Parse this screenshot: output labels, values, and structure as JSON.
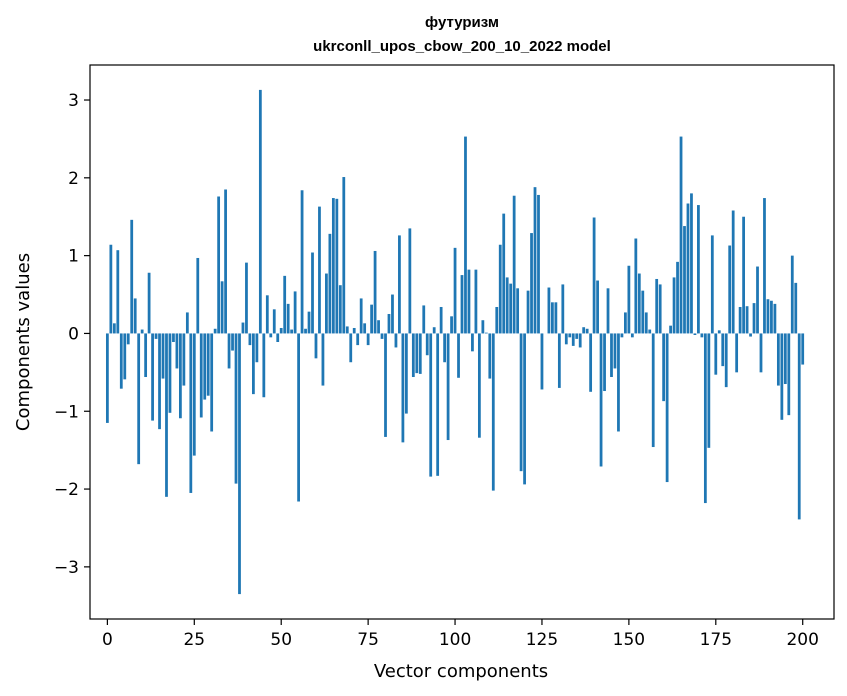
{
  "chart_data": {
    "type": "bar",
    "title_line1": "футуризм",
    "title_line2": "ukrconll_upos_cbow_200_10_2022 model",
    "xlabel": "Vector components",
    "ylabel": "Components values",
    "xlim": [
      -5,
      209
    ],
    "ylim": [
      -3.67,
      3.45
    ],
    "grid": false,
    "bar_color": "#1f77b4",
    "x_ticks": [
      {
        "value": 0,
        "label": "0"
      },
      {
        "value": 25,
        "label": "25"
      },
      {
        "value": 50,
        "label": "50"
      },
      {
        "value": 75,
        "label": "75"
      },
      {
        "value": 100,
        "label": "100"
      },
      {
        "value": 125,
        "label": "125"
      },
      {
        "value": 150,
        "label": "150"
      },
      {
        "value": 175,
        "label": "175"
      },
      {
        "value": 200,
        "label": "200"
      }
    ],
    "y_ticks": [
      {
        "value": 3,
        "label": "3"
      },
      {
        "value": 2,
        "label": "2"
      },
      {
        "value": 1,
        "label": "1"
      },
      {
        "value": 0,
        "label": "0"
      },
      {
        "value": -1,
        "label": "−1"
      },
      {
        "value": -2,
        "label": "−2"
      },
      {
        "value": -3,
        "label": "−3"
      }
    ],
    "values": [
      -1.15,
      1.14,
      0.13,
      1.07,
      -0.71,
      -0.59,
      -0.14,
      1.46,
      0.45,
      -1.68,
      0.05,
      -0.56,
      0.78,
      -1.12,
      -0.07,
      -1.23,
      -0.58,
      -2.1,
      -1.02,
      -0.11,
      -0.45,
      -1.09,
      -0.67,
      0.27,
      -2.05,
      -1.57,
      0.97,
      -1.08,
      -0.85,
      -0.8,
      -1.26,
      0.06,
      1.76,
      0.67,
      1.85,
      -0.45,
      -0.22,
      -1.93,
      -3.35,
      0.14,
      0.91,
      -0.15,
      -0.78,
      -0.37,
      3.13,
      -0.82,
      0.49,
      -0.05,
      0.31,
      -0.11,
      0.07,
      0.74,
      0.38,
      0.05,
      0.54,
      -2.16,
      1.84,
      0.06,
      0.28,
      1.04,
      -0.32,
      1.63,
      -0.67,
      0.77,
      1.28,
      1.74,
      1.73,
      0.62,
      2.01,
      0.09,
      -0.37,
      0.07,
      -0.15,
      0.45,
      0.13,
      -0.15,
      0.37,
      1.06,
      0.17,
      -0.07,
      -1.33,
      0.25,
      0.5,
      -0.18,
      1.26,
      -1.4,
      -1.03,
      1.35,
      -0.56,
      -0.51,
      -0.52,
      0.36,
      -0.28,
      -1.84,
      0.08,
      -1.83,
      0.34,
      -0.37,
      -1.37,
      0.22,
      1.1,
      -0.57,
      0.75,
      2.53,
      0.82,
      -0.23,
      0.82,
      -1.34,
      0.17,
      0.01,
      -0.58,
      -2.02,
      0.34,
      1.14,
      1.54,
      0.72,
      0.64,
      1.77,
      0.58,
      -1.77,
      -1.94,
      0.55,
      1.29,
      1.88,
      1.78,
      -0.72,
      0.0,
      0.59,
      0.4,
      0.4,
      -0.7,
      0.63,
      -0.14,
      -0.05,
      -0.16,
      -0.07,
      -0.18,
      0.08,
      0.06,
      -0.75,
      1.49,
      0.68,
      -1.71,
      -0.74,
      0.58,
      -0.56,
      -0.45,
      -1.26,
      -0.05,
      0.27,
      0.87,
      -0.05,
      1.22,
      0.77,
      0.55,
      0.27,
      0.05,
      -1.46,
      0.7,
      0.63,
      -0.87,
      -1.91,
      0.1,
      0.72,
      0.92,
      2.53,
      1.38,
      1.67,
      1.8,
      -0.02,
      1.65,
      -0.05,
      -2.18,
      -1.47,
      1.26,
      -0.53,
      0.04,
      -0.42,
      -0.69,
      1.13,
      1.58,
      -0.5,
      0.34,
      1.5,
      0.35,
      -0.04,
      0.39,
      0.86,
      -0.5,
      1.74,
      0.44,
      0.42,
      0.38,
      -0.67,
      -1.11,
      -0.65,
      -1.05,
      1.0,
      0.65,
      -2.39,
      -0.4
    ]
  }
}
